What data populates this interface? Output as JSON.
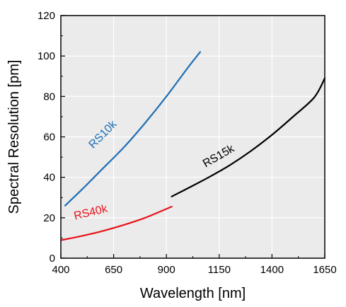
{
  "chart_data": {
    "type": "line",
    "title": "",
    "xlabel": "Wavelength [nm]",
    "ylabel": "Spectral Resolution [pm]",
    "xlim": [
      400,
      1650
    ],
    "ylim": [
      0,
      120
    ],
    "xticks": [
      400,
      650,
      900,
      1150,
      1400,
      1650
    ],
    "yticks": [
      0,
      20,
      40,
      60,
      80,
      100,
      120
    ],
    "grid": true,
    "legend": "none",
    "background": "#ebebeb",
    "series": [
      {
        "name": "RS10k",
        "color": "#1f6fb4",
        "label_at": {
          "x": 610,
          "y": 60
        },
        "x": [
          420,
          500,
          600,
          700,
          800,
          900,
          1000,
          1060
        ],
        "y": [
          26,
          34,
          44.5,
          55,
          67,
          80,
          94,
          102
        ]
      },
      {
        "name": "RS40k",
        "color": "#e8131b",
        "label_at": {
          "x": 545,
          "y": 21
        },
        "x": [
          405,
          500,
          600,
          700,
          800,
          880,
          925
        ],
        "y": [
          9,
          11,
          13.5,
          16.5,
          20,
          23.5,
          25.5
        ]
      },
      {
        "name": "RS15k",
        "color": "#000000",
        "label_at": {
          "x": 1155,
          "y": 49
        },
        "x": [
          925,
          1000,
          1100,
          1200,
          1300,
          1400,
          1500,
          1600,
          1650
        ],
        "y": [
          30.5,
          34.5,
          40,
          46,
          53,
          61,
          70,
          79.5,
          89
        ]
      }
    ]
  }
}
